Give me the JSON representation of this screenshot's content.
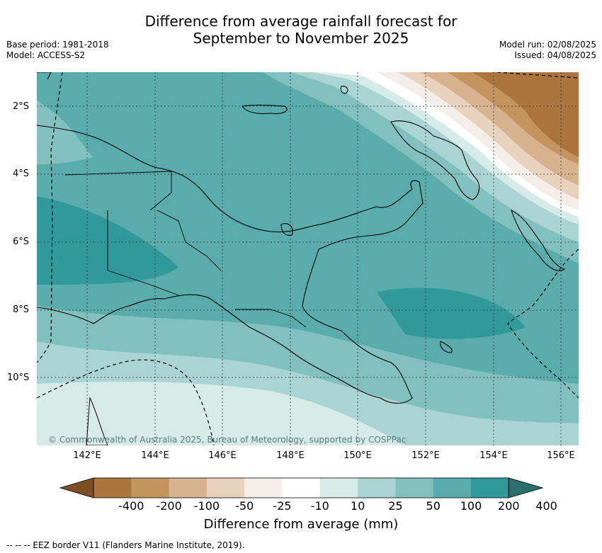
{
  "title_line1": "Difference from average rainfall forecast for",
  "title_line2": "September to November 2025",
  "base_period": "Base period: 1981-2018",
  "model": "Model: ACCESS-S2",
  "model_run": "Model run: 02/08/2025",
  "issued": "Issued: 04/08/2025",
  "latitudes": [
    "2°S",
    "4°S",
    "6°S",
    "8°S",
    "10°S"
  ],
  "longitudes": [
    "142°E",
    "144°E",
    "146°E",
    "148°E",
    "150°E",
    "152°E",
    "154°E",
    "156°E"
  ],
  "copyright": "© Commonwealth of Australia 2025, Bureau of Meteorology, supported by COSPPac",
  "colorbar": {
    "title": "Difference from average (mm)",
    "labels": [
      "-400",
      "-200",
      "-100",
      "-50",
      "-25",
      "-10",
      "10",
      "25",
      "50",
      "100",
      "200",
      "400"
    ],
    "colors": [
      "#7d4f25",
      "#ab7540",
      "#c3945e",
      "#d7b28e",
      "#e8d2bd",
      "#f4eeea",
      "#ffffff",
      "#d6eae8",
      "#aad4d3",
      "#82bfbf",
      "#5aabab",
      "#31999a",
      "#2a6e6e"
    ]
  },
  "footnote": "--  --  -- EEZ border V11 (Flanders Marine Institute, 2019)."
}
